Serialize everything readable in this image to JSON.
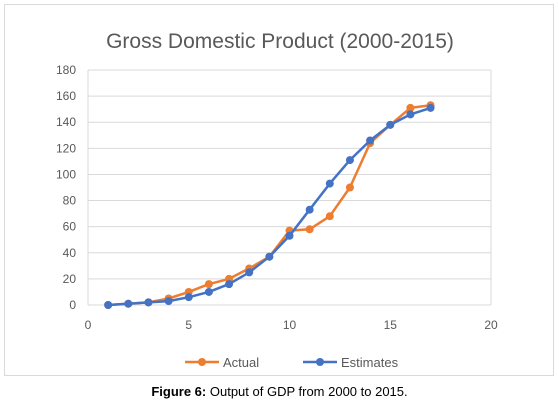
{
  "chart_data": {
    "type": "line",
    "title": "Gross Domestic Product (2000-2015)",
    "xlabel": "",
    "ylabel": "",
    "xlim": [
      0,
      20
    ],
    "ylim": [
      0,
      180
    ],
    "x_ticks": [
      "0",
      "5",
      "10",
      "15",
      "20"
    ],
    "y_ticks": [
      "0",
      "20",
      "40",
      "60",
      "80",
      "100",
      "120",
      "140",
      "160",
      "180"
    ],
    "grid": "horizontal",
    "legend_position": "bottom",
    "series": [
      {
        "name": "Actual",
        "color": "#ED7D31",
        "x": [
          1,
          2,
          3,
          4,
          5,
          6,
          7,
          8,
          9,
          10,
          11,
          12,
          13,
          14,
          15,
          16,
          17
        ],
        "y": [
          0,
          1,
          2,
          5,
          10,
          16,
          20,
          28,
          37,
          57,
          58,
          68,
          90,
          124,
          138,
          151,
          153
        ]
      },
      {
        "name": "Estimates",
        "color": "#4472C4",
        "x": [
          1,
          2,
          3,
          4,
          5,
          6,
          7,
          8,
          9,
          10,
          11,
          12,
          13,
          14,
          15,
          16,
          17
        ],
        "y": [
          0,
          1,
          2,
          3,
          6,
          10,
          16,
          25,
          37,
          53,
          73,
          93,
          111,
          126,
          138,
          146,
          151
        ]
      }
    ]
  },
  "caption": {
    "label": "Figure 6:",
    "text": " Output of GDP from 2000 to 2015."
  }
}
